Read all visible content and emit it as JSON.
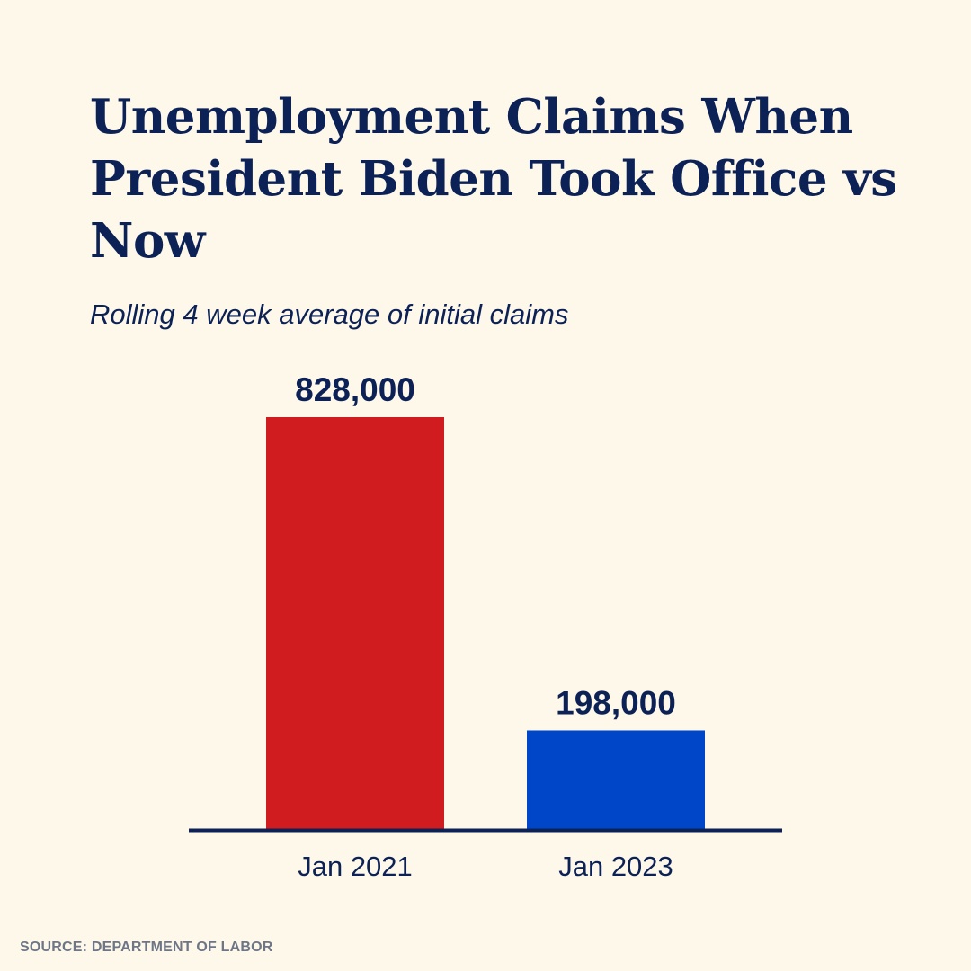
{
  "title": "Unemployment Claims When President Biden Took Office vs Now",
  "subtitle": "Rolling 4 week average of initial claims",
  "source": "SOURCE: DEPARTMENT OF LABOR",
  "colors": {
    "background": "#fdf8e9",
    "text": "#0c2155",
    "axis": "#0c2155",
    "bars": [
      "#d01c1e",
      "#0046c8"
    ]
  },
  "chart_data": {
    "type": "bar",
    "categories": [
      "Jan 2021",
      "Jan 2023"
    ],
    "values": [
      828000,
      198000
    ],
    "value_labels": [
      "828,000",
      "198,000"
    ],
    "title": "Unemployment Claims When President Biden Took Office vs Now",
    "subtitle": "Rolling 4 week average of initial claims",
    "ylim": [
      0,
      828000
    ],
    "grid": false,
    "legend": "none"
  }
}
